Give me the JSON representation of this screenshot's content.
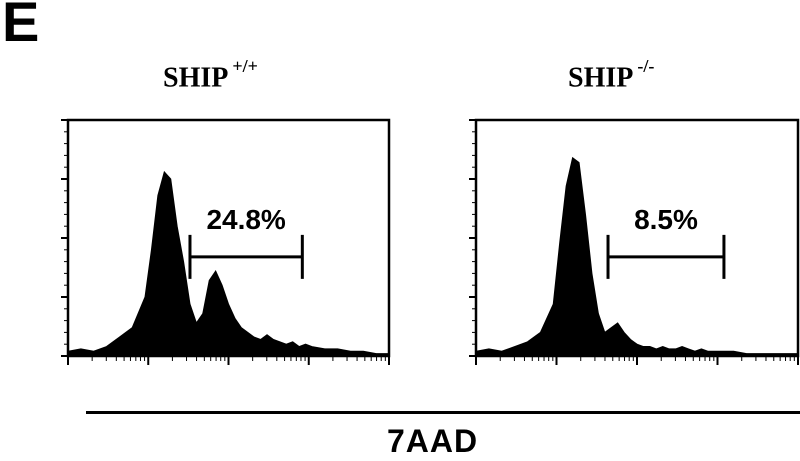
{
  "panel_letter": "E",
  "x_axis_label": "7AAD",
  "chart_data": [
    {
      "type": "area",
      "title": "SHIP",
      "title_superscript": "+/+",
      "xlabel": "7AAD",
      "ylabel": "",
      "x_scale": "log",
      "xlim": [
        0,
        100
      ],
      "ylim": [
        0,
        100
      ],
      "series": [
        {
          "x": [
            0,
            4,
            8,
            12,
            16,
            20,
            24,
            26,
            28,
            30,
            32,
            34,
            36,
            38,
            40,
            42,
            44,
            46,
            48,
            50,
            52,
            54,
            56,
            58,
            60,
            62,
            64,
            66,
            68,
            70,
            72,
            74,
            76,
            80,
            84,
            88,
            92,
            96,
            100
          ],
          "values": [
            2,
            3,
            2,
            4,
            8,
            12,
            25,
            45,
            68,
            78,
            75,
            55,
            40,
            22,
            14,
            18,
            32,
            36,
            30,
            22,
            16,
            12,
            10,
            8,
            7,
            9,
            7,
            6,
            5,
            6,
            4,
            5,
            4,
            3,
            3,
            2,
            2,
            1,
            1
          ]
        }
      ],
      "gate": {
        "x_start": 38,
        "x_end": 73,
        "level": 42,
        "label": "24.8%"
      }
    },
    {
      "type": "area",
      "title": "SHIP",
      "title_superscript": "-/-",
      "xlabel": "7AAD",
      "ylabel": "",
      "x_scale": "log",
      "xlim": [
        0,
        100
      ],
      "ylim": [
        0,
        100
      ],
      "series": [
        {
          "x": [
            0,
            4,
            8,
            12,
            16,
            20,
            24,
            26,
            28,
            30,
            32,
            34,
            36,
            38,
            40,
            42,
            44,
            46,
            48,
            50,
            52,
            54,
            56,
            58,
            60,
            62,
            64,
            66,
            68,
            70,
            72,
            76,
            80,
            84,
            88,
            92,
            96,
            100
          ],
          "values": [
            2,
            3,
            2,
            4,
            6,
            10,
            22,
            48,
            72,
            84,
            82,
            60,
            35,
            18,
            10,
            12,
            14,
            10,
            7,
            5,
            4,
            4,
            3,
            4,
            3,
            3,
            4,
            3,
            2,
            3,
            2,
            2,
            2,
            1,
            1,
            1,
            1,
            1
          ]
        }
      ],
      "gate": {
        "x_start": 41,
        "x_end": 77,
        "level": 42,
        "label": "8.5%"
      }
    }
  ]
}
